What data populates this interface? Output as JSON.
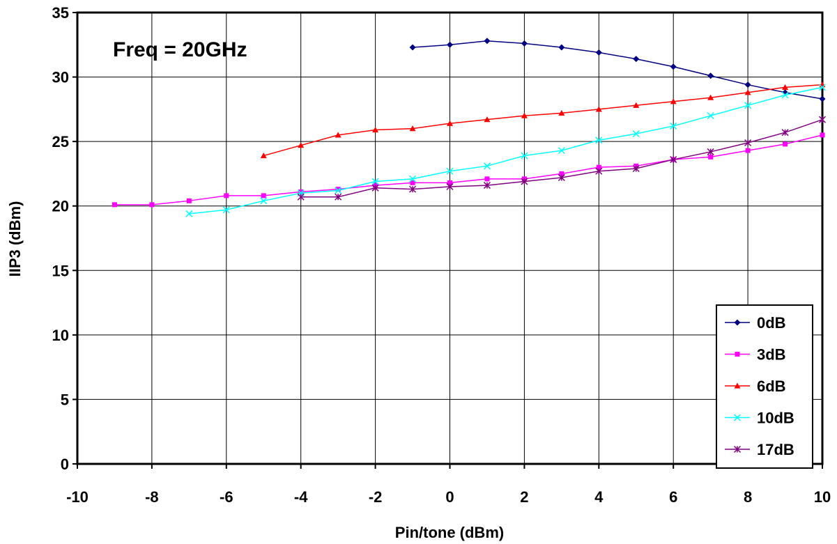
{
  "chart_data": {
    "type": "line",
    "title": "",
    "annotation": "Freq = 20GHz",
    "xlabel": "Pin/tone (dBm)",
    "ylabel": "IIP3 (dBm)",
    "xlim": [
      -10,
      10
    ],
    "ylim": [
      0,
      35
    ],
    "xticks": [
      -10,
      -8,
      -6,
      -4,
      -2,
      0,
      2,
      4,
      6,
      8,
      10
    ],
    "yticks": [
      0,
      5,
      10,
      15,
      20,
      25,
      30,
      35
    ],
    "grid": true,
    "legend_position": "bottom-right",
    "series": [
      {
        "name": "0dB",
        "color": "#000080",
        "marker": "diamond",
        "x": [
          -1,
          0,
          1,
          2,
          3,
          4,
          5,
          6,
          7,
          8,
          9,
          10
        ],
        "y": [
          32.3,
          32.5,
          32.8,
          32.6,
          32.3,
          31.9,
          31.4,
          30.8,
          30.1,
          29.4,
          28.8,
          28.3
        ]
      },
      {
        "name": "3dB",
        "color": "#ff00ff",
        "marker": "square",
        "x": [
          -9,
          -8,
          -7,
          -6,
          -5,
          -4,
          -3,
          -2,
          -1,
          0,
          1,
          2,
          3,
          4,
          5,
          6,
          7,
          8,
          9,
          10
        ],
        "y": [
          20.1,
          20.1,
          20.4,
          20.8,
          20.8,
          21.1,
          21.3,
          21.6,
          21.8,
          21.8,
          22.1,
          22.1,
          22.5,
          23.0,
          23.1,
          23.6,
          23.8,
          24.3,
          24.8,
          25.5
        ]
      },
      {
        "name": "6dB",
        "color": "#ff0000",
        "marker": "triangle",
        "x": [
          -5,
          -4,
          -3,
          -2,
          -1,
          0,
          1,
          2,
          3,
          4,
          5,
          6,
          7,
          8,
          9,
          10
        ],
        "y": [
          23.9,
          24.7,
          25.5,
          25.9,
          26.0,
          26.4,
          26.7,
          27.0,
          27.2,
          27.5,
          27.8,
          28.1,
          28.4,
          28.8,
          29.2,
          29.4
        ]
      },
      {
        "name": "10dB",
        "color": "#00ffff",
        "marker": "x",
        "x": [
          -7,
          -6,
          -5,
          -4,
          -3,
          -2,
          -1,
          0,
          1,
          2,
          3,
          4,
          5,
          6,
          7,
          8,
          9,
          10
        ],
        "y": [
          19.4,
          19.7,
          20.4,
          21.0,
          21.2,
          21.9,
          22.1,
          22.7,
          23.1,
          23.9,
          24.3,
          25.1,
          25.6,
          26.2,
          27.0,
          27.8,
          28.6,
          29.2
        ]
      },
      {
        "name": "17dB",
        "color": "#800080",
        "marker": "star",
        "x": [
          -4,
          -3,
          -2,
          -1,
          0,
          1,
          2,
          3,
          4,
          5,
          6,
          7,
          8,
          9,
          10
        ],
        "y": [
          20.7,
          20.7,
          21.4,
          21.3,
          21.5,
          21.6,
          21.9,
          22.2,
          22.7,
          22.9,
          23.6,
          24.2,
          24.9,
          25.7,
          26.7
        ]
      }
    ]
  }
}
